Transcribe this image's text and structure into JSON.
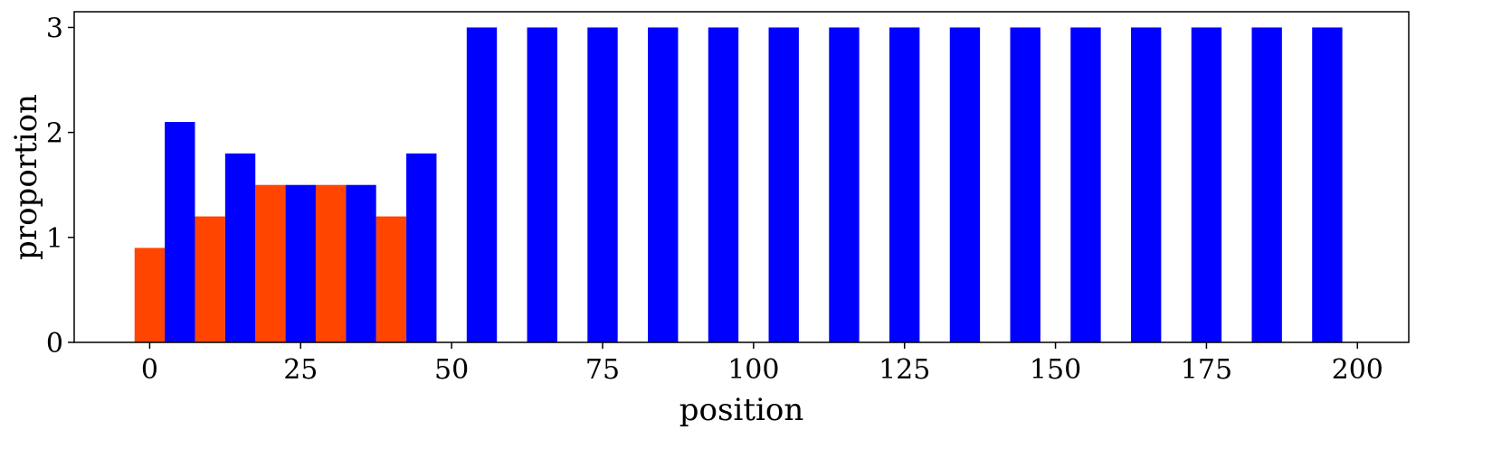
{
  "chart_data": {
    "type": "bar",
    "xlabel": "position",
    "ylabel": "proportion",
    "xlim": [
      -12.5,
      208.5
    ],
    "ylim": [
      0,
      3.15
    ],
    "xticks": [
      0,
      25,
      50,
      75,
      100,
      125,
      150,
      175,
      200
    ],
    "yticks": [
      0,
      1,
      2,
      3
    ],
    "bar_width": 5,
    "grid": false,
    "series": [
      {
        "color": "#ff4500",
        "x": [
          0,
          10,
          20,
          30,
          40
        ],
        "values": [
          0.9,
          1.2,
          1.5,
          1.5,
          1.2
        ]
      },
      {
        "color": "#0000ff",
        "x": [
          5,
          15,
          25,
          35,
          45,
          55,
          65,
          75,
          85,
          95,
          105,
          115,
          125,
          135,
          145,
          155,
          165,
          175,
          185,
          195
        ],
        "values": [
          2.1,
          1.8,
          1.5,
          1.5,
          1.8,
          3,
          3,
          3,
          3,
          3,
          3,
          3,
          3,
          3,
          3,
          3,
          3,
          3,
          3,
          3
        ]
      }
    ]
  }
}
